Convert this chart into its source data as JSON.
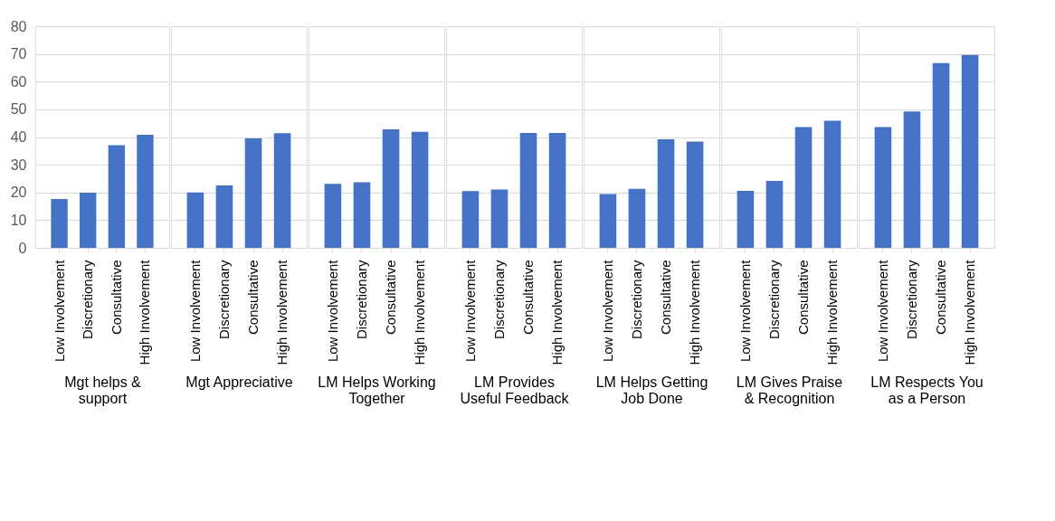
{
  "chart_data": [
    {
      "type": "bar",
      "xlabel": "Mgt helps & support",
      "categories": [
        "Low Involvement",
        "Discretionary",
        "Consultative",
        "High Involvement"
      ],
      "values": [
        17.6,
        19.9,
        37.1,
        40.8
      ],
      "color": "#4472c4",
      "ylim": [
        0,
        80
      ],
      "yticks": [
        0,
        10,
        20,
        30,
        40,
        50,
        60,
        70,
        80
      ],
      "grid": "y"
    },
    {
      "type": "bar",
      "xlabel": "Mgt Appreciative",
      "categories": [
        "Low Involvement",
        "Discretionary",
        "Consultative",
        "High Involvement"
      ],
      "values": [
        20.0,
        22.5,
        39.5,
        41.4
      ],
      "color": "#4472c4",
      "ylim": [
        0,
        80
      ],
      "yticks": [
        0,
        10,
        20,
        30,
        40,
        50,
        60,
        70,
        80
      ],
      "grid": "y",
      "tick_labels": "x"
    },
    {
      "type": "bar",
      "xlabel": "LM Helps Working Together",
      "categories": [
        "Low Involvement",
        "Discretionary",
        "Consultative",
        "High Involvement"
      ],
      "values": [
        23.1,
        23.7,
        42.8,
        41.9
      ],
      "color": "#4472c4",
      "ylim": [
        0,
        80
      ],
      "yticks": [
        0,
        10,
        20,
        30,
        40,
        50,
        60,
        70,
        80
      ],
      "grid": "y",
      "tick_labels": "x"
    },
    {
      "type": "bar",
      "xlabel": "LM Provides Useful Feedback",
      "categories": [
        "Low Involvement",
        "Discretionary",
        "Consultative",
        "High Involvement"
      ],
      "values": [
        20.5,
        21.1,
        41.5,
        41.5
      ],
      "color": "#4472c4",
      "ylim": [
        0,
        80
      ],
      "yticks": [
        0,
        10,
        20,
        30,
        40,
        50,
        60,
        70,
        80
      ],
      "grid": "y",
      "tick_labels": "x"
    },
    {
      "type": "bar",
      "xlabel": "LM Helps Getting Job Done",
      "categories": [
        "Low Involvement",
        "Discretionary",
        "Consultative",
        "High Involvement"
      ],
      "values": [
        19.4,
        21.3,
        39.2,
        38.4
      ],
      "color": "#4472c4",
      "ylim": [
        0,
        80
      ],
      "yticks": [
        0,
        10,
        20,
        30,
        40,
        50,
        60,
        70,
        80
      ],
      "grid": "y",
      "tick_labels": "x"
    },
    {
      "type": "bar",
      "xlabel": "LM Gives Praise & Recognition",
      "categories": [
        "Low Involvement",
        "Discretionary",
        "Consultative",
        "High Involvement"
      ],
      "values": [
        20.6,
        24.2,
        43.6,
        45.9
      ],
      "color": "#4472c4",
      "ylim": [
        0,
        80
      ],
      "yticks": [
        0,
        10,
        20,
        30,
        40,
        50,
        60,
        70,
        80
      ],
      "grid": "y",
      "tick_labels": "x"
    },
    {
      "type": "bar",
      "xlabel": "LM Respects You as a Person",
      "categories": [
        "Low Involvement",
        "Discretionary",
        "Consultative",
        "High Involvement"
      ],
      "values": [
        43.6,
        49.2,
        66.7,
        69.6
      ],
      "color": "#4472c4",
      "ylim": [
        0,
        80
      ],
      "yticks": [
        0,
        10,
        20,
        30,
        40,
        50,
        60,
        70,
        80
      ],
      "grid": "y",
      "tick_labels": "x"
    }
  ]
}
